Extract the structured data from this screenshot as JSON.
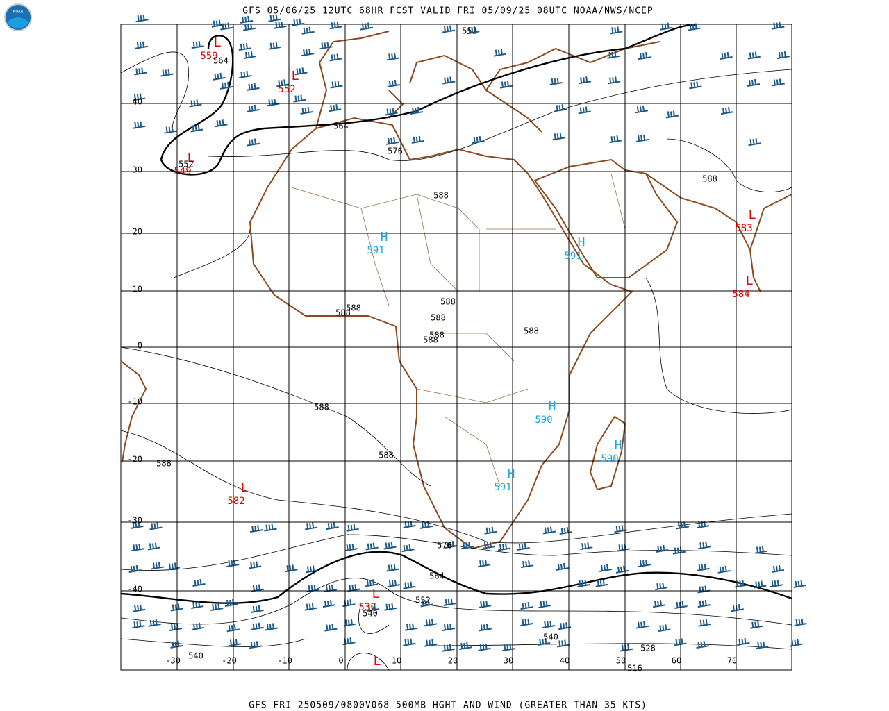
{
  "header": {
    "logo": "NOAA",
    "title": "GFS 05/06/25 12UTC 68HR FCST VALID FRI 05/09/25 08UTC NOAA/NWS/NCEP"
  },
  "footer": {
    "caption": "GFS FRI 250509/0800V068 500MB HGHT AND WIND (GREATER THAN 35 KTS)"
  },
  "map": {
    "latitudes": [
      40,
      30,
      20,
      10,
      0,
      -10,
      -20,
      -30,
      -40
    ],
    "longitudes": [
      -30,
      -20,
      -10,
      0,
      10,
      20,
      30,
      40,
      50,
      60,
      70
    ],
    "centers": [
      {
        "type": "L",
        "value": 559
      },
      {
        "type": "L",
        "value": 552
      },
      {
        "type": "L",
        "value": 549
      },
      {
        "type": "H",
        "value": 591
      },
      {
        "type": "H",
        "value": 591
      },
      {
        "type": "L",
        "value": 583
      },
      {
        "type": "L",
        "value": 584
      },
      {
        "type": "H",
        "value": 590
      },
      {
        "type": "H",
        "value": 590
      },
      {
        "type": "H",
        "value": 591
      },
      {
        "type": "L",
        "value": 582
      },
      {
        "type": "L",
        "value": 537
      },
      {
        "type": "L"
      }
    ],
    "contour_labels": [
      552,
      564,
      564,
      576,
      588,
      588,
      588,
      588,
      588,
      588,
      588,
      588,
      588,
      588,
      588,
      588,
      576,
      564,
      552,
      540,
      540,
      528,
      516,
      540,
      552
    ]
  }
}
